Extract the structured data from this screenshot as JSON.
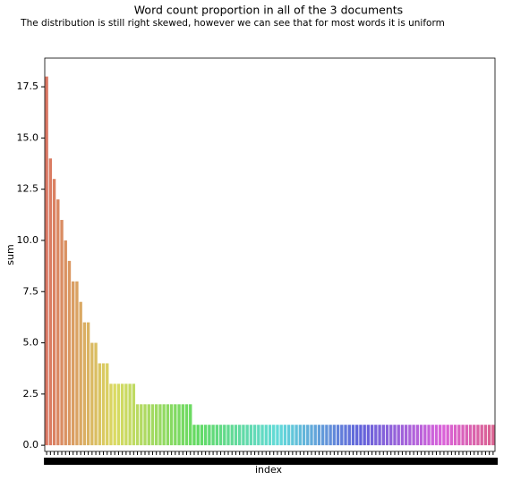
{
  "chart_data": {
    "type": "bar",
    "title": "Word count proportion in all of the 3 documents",
    "subtitle": "The distribution is still right skewed, however we can see that for most words it is uniform",
    "x_label": "index",
    "y_label": "sum",
    "palette": "husl",
    "categories": [
      null,
      null,
      null,
      null,
      null,
      null,
      null,
      null,
      null,
      null,
      null,
      null,
      null,
      null,
      null,
      null,
      null,
      null,
      null,
      null,
      null,
      null,
      null,
      null,
      null,
      null,
      null,
      null,
      null,
      null,
      null,
      null,
      null,
      null,
      null,
      null,
      null,
      null,
      null,
      null,
      null,
      null,
      null,
      null,
      null,
      null,
      null,
      null,
      null,
      null,
      null,
      null,
      null,
      null,
      null,
      null,
      null,
      null,
      null,
      null,
      null,
      null,
      null,
      null,
      null,
      null,
      null,
      null,
      null,
      null,
      null,
      null,
      null,
      null,
      null,
      null,
      null,
      null,
      null,
      null,
      null,
      null,
      null,
      null,
      null,
      null,
      null,
      null,
      null,
      null,
      null,
      null,
      null,
      null,
      null,
      null,
      null,
      null,
      null,
      null,
      null,
      null,
      null,
      null,
      null,
      null,
      null,
      null,
      null,
      null,
      null,
      null,
      null,
      null,
      null,
      null,
      null,
      null,
      null
    ],
    "values": [
      18,
      14,
      13,
      12,
      11,
      10,
      9,
      8,
      8,
      7,
      6,
      6,
      5,
      5,
      4,
      4,
      4,
      3,
      3,
      3,
      3,
      3,
      3,
      3,
      2,
      2,
      2,
      2,
      2,
      2,
      2,
      2,
      2,
      2,
      2,
      2,
      2,
      2,
      2,
      1,
      1,
      1,
      1,
      1,
      1,
      1,
      1,
      1,
      1,
      1,
      1,
      1,
      1,
      1,
      1,
      1,
      1,
      1,
      1,
      1,
      1,
      1,
      1,
      1,
      1,
      1,
      1,
      1,
      1,
      1,
      1,
      1,
      1,
      1,
      1,
      1,
      1,
      1,
      1,
      1,
      1,
      1,
      1,
      1,
      1,
      1,
      1,
      1,
      1,
      1,
      1,
      1,
      1,
      1,
      1,
      1,
      1,
      1,
      1,
      1,
      1,
      1,
      1,
      1,
      1,
      1,
      1,
      1,
      1,
      1,
      1,
      1,
      1,
      1,
      1,
      1,
      1,
      1,
      1
    ],
    "ylim": [
      -0.3,
      18.9
    ],
    "yticks": [
      {
        "value": 0,
        "label": "0.0"
      },
      2.5,
      {
        "value": 5,
        "label": "5.0"
      },
      7.5,
      {
        "value": 10,
        "label": "10.0"
      },
      12.5,
      {
        "value": 15,
        "label": "15.0"
      },
      17.5
    ]
  }
}
